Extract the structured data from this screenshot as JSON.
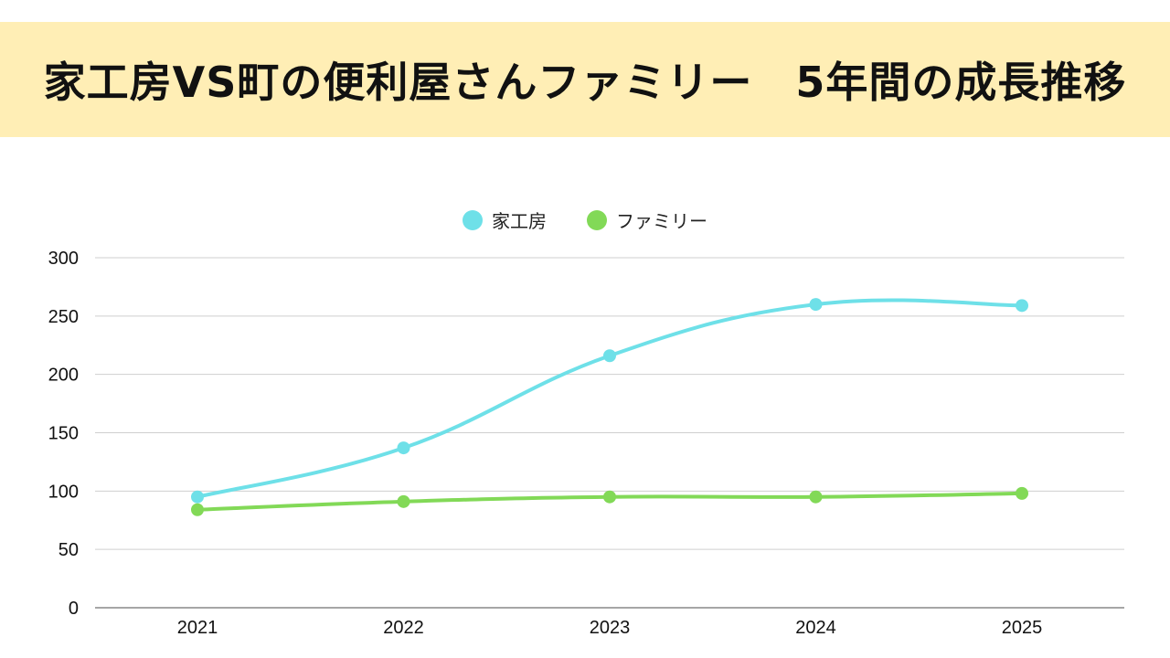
{
  "title": "家工房VS町の便利屋さんファミリー　5年間の成長推移",
  "chart_data": {
    "type": "line",
    "x": [
      "2021",
      "2022",
      "2023",
      "2024",
      "2025"
    ],
    "series": [
      {
        "name": "家工房",
        "values": [
          95,
          137,
          216,
          260,
          259
        ],
        "color": "#6ee0e8"
      },
      {
        "name": "ファミリー",
        "values": [
          84,
          91,
          95,
          95,
          98
        ],
        "color": "#82d957"
      }
    ],
    "ylim": [
      0,
      300
    ],
    "yticks": [
      0,
      50,
      100,
      150,
      200,
      250,
      300
    ],
    "grid": true,
    "legend_position": "top-center",
    "smooth": true
  }
}
